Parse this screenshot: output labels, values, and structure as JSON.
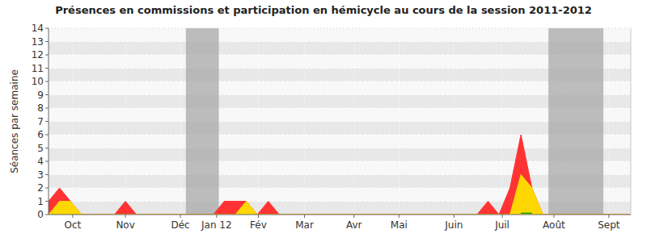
{
  "chart_data": {
    "type": "area",
    "title": "Présences en commissions et participation en hémicycle au cours de la session 2011-2012",
    "y_label": "Séances par semaine",
    "x": [
      0,
      1,
      2,
      3,
      4,
      5,
      6,
      7,
      8,
      9,
      10,
      11,
      12,
      13,
      14,
      15,
      16,
      17,
      18,
      19,
      20,
      21,
      22,
      23,
      24,
      25,
      26,
      27,
      28,
      29,
      30,
      31,
      32,
      33,
      34,
      35,
      36,
      37,
      38,
      39,
      40,
      41,
      42,
      43,
      44,
      45,
      46,
      47,
      48,
      49,
      50,
      51,
      52,
      53
    ],
    "series": [
      {
        "type": "area",
        "color": "#ff3333",
        "values": [
          1,
          2,
          1,
          0,
          0,
          0,
          0,
          1,
          0,
          0,
          0,
          0,
          0,
          0,
          0,
          0,
          1,
          1,
          1,
          0,
          1,
          0,
          0,
          0,
          0,
          0,
          0,
          0,
          0,
          0,
          0,
          0,
          0,
          0,
          0,
          0,
          0,
          0,
          0,
          0,
          1,
          0,
          2,
          6,
          2,
          0,
          0,
          0,
          0,
          0,
          0,
          0,
          0,
          0
        ]
      },
      {
        "type": "area",
        "color": "#ffd700",
        "values": [
          0,
          1,
          1,
          0,
          0,
          0,
          0,
          0,
          0,
          0,
          0,
          0,
          0,
          0,
          0,
          0,
          0,
          0,
          1,
          0,
          0,
          0,
          0,
          0,
          0,
          0,
          0,
          0,
          0,
          0,
          0,
          0,
          0,
          0,
          0,
          0,
          0,
          0,
          0,
          0,
          0,
          0,
          0,
          3,
          2,
          0,
          0,
          0,
          0,
          0,
          0,
          0,
          0,
          0
        ]
      },
      {
        "type": "line",
        "color": "#00aa00",
        "values": [
          null,
          null,
          null,
          null,
          null,
          null,
          null,
          null,
          null,
          null,
          null,
          null,
          null,
          null,
          null,
          null,
          null,
          null,
          null,
          null,
          null,
          null,
          null,
          null,
          null,
          null,
          null,
          null,
          null,
          null,
          null,
          null,
          null,
          null,
          null,
          null,
          null,
          null,
          null,
          null,
          null,
          null,
          null,
          0.1,
          0.1,
          null,
          null,
          null,
          null,
          null,
          null,
          null,
          null,
          null
        ]
      }
    ],
    "bands": [
      [
        12.5,
        15.5
      ],
      [
        45.5,
        50.5
      ]
    ],
    "xlim": [
      0,
      53
    ],
    "xticks": [
      {
        "value": 2.2,
        "label": "Oct"
      },
      {
        "value": 7.0,
        "label": "Nov"
      },
      {
        "value": 12.0,
        "label": "Déc"
      },
      {
        "value": 15.3,
        "label": "Jan 12"
      },
      {
        "value": 19.1,
        "label": "Fév"
      },
      {
        "value": 23.3,
        "label": "Mar"
      },
      {
        "value": 27.8,
        "label": "Avr"
      },
      {
        "value": 31.9,
        "label": "Mai"
      },
      {
        "value": 36.9,
        "label": "Juin"
      },
      {
        "value": 41.3,
        "label": "Juil"
      },
      {
        "value": 46.0,
        "label": "Août"
      },
      {
        "value": 51.0,
        "label": "Sept"
      }
    ],
    "ylim": [
      0,
      14
    ],
    "yticks": [
      0,
      1,
      2,
      3,
      4,
      5,
      6,
      7,
      8,
      9,
      10,
      11,
      12,
      13,
      14
    ],
    "grid": true
  }
}
